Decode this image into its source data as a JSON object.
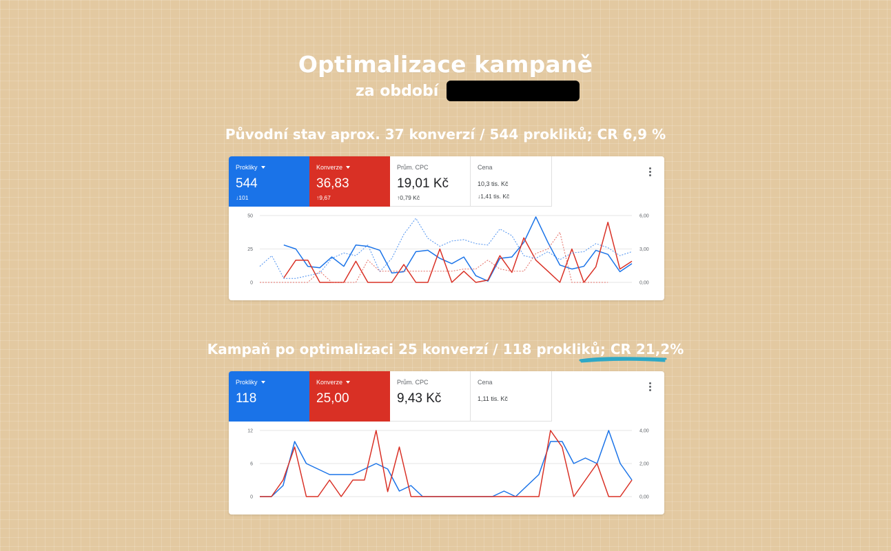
{
  "title": "Optimalizace kampaně",
  "subtitle": "za období",
  "heading_before": "Původní stav aprox. 37 konverzí / 544 prokliků; CR 6,9 %",
  "heading_after": "Kampaň po optimalizaci 25 konverzí / 118 prokliků; CR 21,2%",
  "colors": {
    "blue": "#1a73e8",
    "red": "#d93025",
    "underline": "#2ea8c6"
  },
  "icons": {
    "menu": "more-vertical-icon",
    "dropdown": "caret-down-icon",
    "up": "arrow-up-icon",
    "down": "arrow-down-icon"
  },
  "card_before": {
    "metrics": [
      {
        "label": "Prokliky",
        "value": "544",
        "change": "↓101"
      },
      {
        "label": "Konverze",
        "value": "36,83",
        "change": "↑9,67"
      },
      {
        "label": "Prům. CPC",
        "value": "19,01 Kč",
        "change": "↑0,79 Kč"
      },
      {
        "label": "Cena",
        "value": "10,3 tis. Kč",
        "change": "↓1,41 tis. Kč"
      }
    ]
  },
  "card_after": {
    "metrics": [
      {
        "label": "Prokliky",
        "value": "118"
      },
      {
        "label": "Konverze",
        "value": "25,00"
      },
      {
        "label": "Prům. CPC",
        "value": "9,43 Kč"
      },
      {
        "label": "Cena",
        "value": "1,11 tis. Kč"
      }
    ]
  },
  "chart_data": [
    {
      "type": "line",
      "left_ticks": [
        "50",
        "25",
        "0"
      ],
      "right_ticks": [
        "6,00",
        "3,00",
        "0,00"
      ],
      "ylim_left": [
        0,
        50
      ],
      "ylim_right": [
        0,
        6
      ],
      "grid": true,
      "series": [
        {
          "axis": "left",
          "color": "#1a73e8",
          "style": "solid",
          "start_index": 2,
          "values": [
            28,
            25,
            12,
            11,
            19,
            12,
            28,
            27,
            24,
            7,
            8,
            23,
            24,
            18,
            14,
            19,
            5,
            1,
            18,
            19,
            30,
            49,
            30,
            13,
            10,
            12,
            24,
            21,
            8,
            14
          ]
        },
        {
          "axis": "right",
          "color": "#d93025",
          "style": "solid",
          "start_index": 2,
          "values": [
            0.4,
            2.0,
            2.0,
            0,
            0,
            0,
            1.9,
            0,
            0,
            0,
            1.6,
            0,
            0,
            3.0,
            0,
            1.0,
            0,
            0.2,
            2.4,
            0.9,
            4.0,
            2.0,
            1.0,
            0,
            3.0,
            0,
            1.4,
            5.4,
            1.2,
            1.9
          ]
        },
        {
          "axis": "left",
          "color": "#4a8fef",
          "style": "dashed",
          "start_index": 0,
          "values": [
            12,
            20,
            3,
            3,
            5,
            7,
            18,
            22,
            20,
            28,
            8,
            18,
            36,
            48,
            33,
            27,
            31,
            32,
            29,
            28,
            40,
            35,
            20,
            18,
            23,
            17,
            22,
            23,
            29,
            26,
            20,
            23
          ]
        },
        {
          "axis": "right",
          "color": "#e36a61",
          "style": "dashed",
          "start_index": 0,
          "values": [
            0,
            0,
            0,
            0,
            0,
            1.0,
            0,
            0,
            0,
            2.0,
            1.0,
            1.0,
            1.0,
            1.0,
            1.0,
            1.0,
            1.0,
            1.2,
            1.2,
            2.0,
            1.2,
            1.0,
            1.0,
            2.6,
            3.0,
            4.5,
            0,
            0,
            0,
            0
          ]
        }
      ]
    },
    {
      "type": "line",
      "left_ticks": [
        "12",
        "6",
        "0"
      ],
      "right_ticks": [
        "4,00",
        "2,00",
        "0,00"
      ],
      "ylim_left": [
        0,
        12
      ],
      "ylim_right": [
        0,
        4
      ],
      "grid": true,
      "series": [
        {
          "axis": "left",
          "color": "#1a73e8",
          "style": "solid",
          "start_index": 0,
          "values": [
            0,
            0,
            2,
            10,
            6,
            5,
            4,
            4,
            4,
            5,
            6,
            5,
            1,
            2,
            0,
            0,
            0,
            0,
            0,
            0,
            0,
            1,
            0,
            2,
            4,
            10,
            10,
            6,
            7,
            6,
            12,
            6,
            3
          ]
        },
        {
          "axis": "right",
          "color": "#d93025",
          "style": "solid",
          "start_index": 0,
          "values": [
            0,
            0,
            1.0,
            3.0,
            0,
            0,
            1.0,
            0,
            1.0,
            1.0,
            4.0,
            0.3,
            3.0,
            0,
            0,
            0,
            0,
            0,
            0,
            0,
            0,
            0,
            0,
            0,
            0,
            4.0,
            3.0,
            0,
            1.0,
            2.0,
            0,
            0,
            1.0
          ]
        }
      ]
    }
  ]
}
